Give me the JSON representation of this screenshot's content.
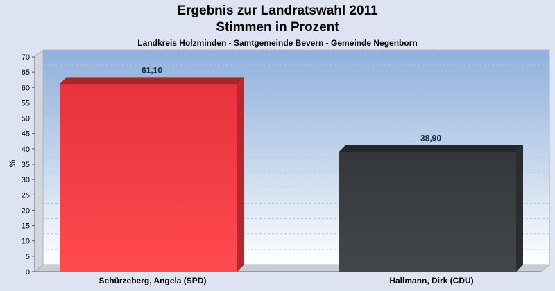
{
  "chart_data": {
    "type": "bar",
    "title": "Ergebnis zur Landratswahl 2011",
    "subtitle_line": "Stimmen in Prozent",
    "caption": "Landkreis Holzminden - Samtgemeinde Bevern - Gemeinde Negenborn",
    "categories": [
      "Schürzeberg, Angela (SPD)",
      "Hallmann, Dirk (CDU)"
    ],
    "values": [
      61.1,
      38.9
    ],
    "value_labels": [
      "61,10",
      "38,90"
    ],
    "bar_colors": [
      "#f03c44",
      "#3a3d42"
    ],
    "xlabel": "",
    "ylabel": "%",
    "ylim": [
      0,
      70
    ],
    "yticks": [
      0,
      5,
      10,
      15,
      20,
      25,
      30,
      35,
      40,
      45,
      50,
      55,
      60,
      65,
      70
    ],
    "grid": true
  }
}
